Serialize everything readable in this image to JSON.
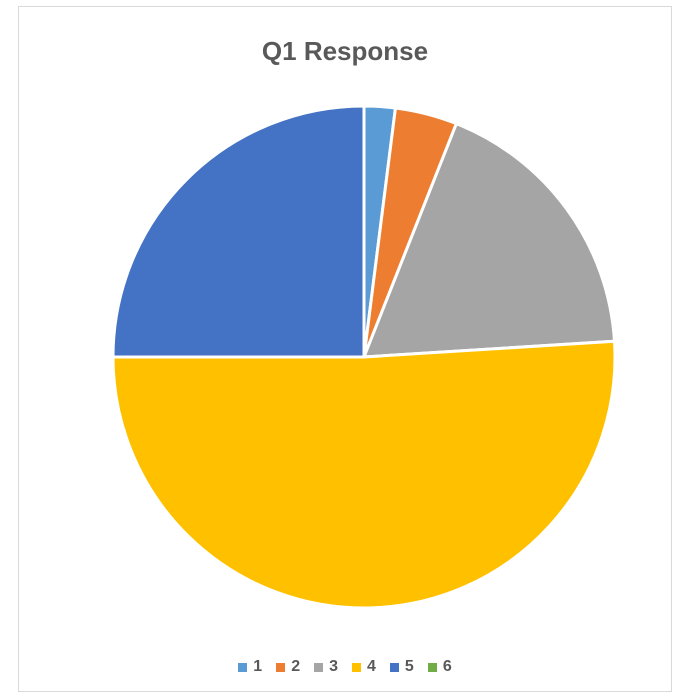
{
  "chart_data": {
    "type": "pie",
    "title": "Q1 Response",
    "categories": [
      "1",
      "2",
      "3",
      "4",
      "5",
      "6"
    ],
    "values": [
      2,
      4,
      18,
      51,
      25,
      0
    ],
    "colors": [
      "#5b9bd5",
      "#ed7d31",
      "#a5a5a5",
      "#ffc000",
      "#4472c4",
      "#70ad47"
    ],
    "legend_position": "bottom"
  }
}
